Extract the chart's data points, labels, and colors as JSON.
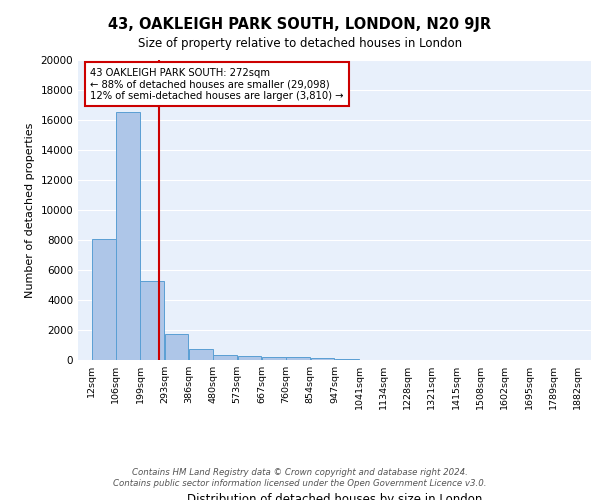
{
  "title_line1": "43, OAKLEIGH PARK SOUTH, LONDON, N20 9JR",
  "title_line2": "Size of property relative to detached houses in London",
  "xlabel": "Distribution of detached houses by size in London",
  "ylabel": "Number of detached properties",
  "bin_labels": [
    "12sqm",
    "106sqm",
    "199sqm",
    "293sqm",
    "386sqm",
    "480sqm",
    "573sqm",
    "667sqm",
    "760sqm",
    "854sqm",
    "947sqm",
    "1041sqm",
    "1134sqm",
    "1228sqm",
    "1321sqm",
    "1415sqm",
    "1508sqm",
    "1602sqm",
    "1695sqm",
    "1789sqm",
    "1882sqm"
  ],
  "bin_edges": [
    12,
    106,
    199,
    293,
    386,
    480,
    573,
    667,
    760,
    854,
    947,
    1041,
    1134,
    1228,
    1321,
    1415,
    1508,
    1602,
    1695,
    1789,
    1882
  ],
  "bar_heights": [
    8100,
    16500,
    5300,
    1750,
    750,
    350,
    275,
    200,
    175,
    150,
    100,
    0,
    0,
    0,
    0,
    0,
    0,
    0,
    0,
    0,
    0
  ],
  "bar_color": "#aec6e8",
  "bar_edge_color": "#5a9fd4",
  "vline_x": 272,
  "vline_color": "#cc0000",
  "annotation_text": "43 OAKLEIGH PARK SOUTH: 272sqm\n← 88% of detached houses are smaller (29,098)\n12% of semi-detached houses are larger (3,810) →",
  "annotation_box_color": "#ffffff",
  "annotation_box_edge_color": "#cc0000",
  "ylim": [
    0,
    20000
  ],
  "yticks": [
    0,
    2000,
    4000,
    6000,
    8000,
    10000,
    12000,
    14000,
    16000,
    18000,
    20000
  ],
  "background_color": "#e8f0fb",
  "footer_text": "Contains HM Land Registry data © Crown copyright and database right 2024.\nContains public sector information licensed under the Open Government Licence v3.0.",
  "grid_color": "#ffffff"
}
